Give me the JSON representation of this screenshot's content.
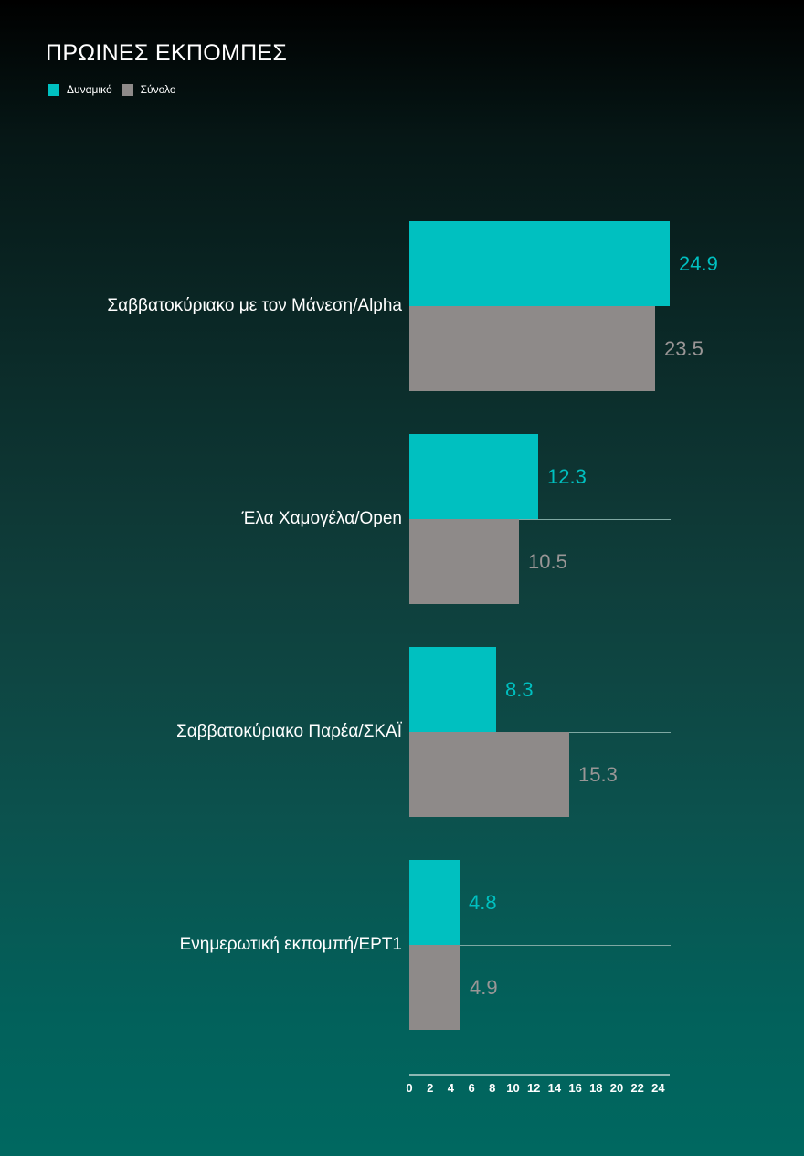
{
  "title": "ΠΡΩΙΝΕΣ ΕΚΠΟΜΠΕΣ",
  "legend": [
    {
      "label": "Δυναμικό",
      "color": "#00c0c0"
    },
    {
      "label": "Σύνολο",
      "color": "#8e8a89"
    }
  ],
  "colors": {
    "dynamic": "#00c0c0",
    "total": "#8e8a89"
  },
  "chart_data": {
    "type": "bar",
    "orientation": "horizontal",
    "title": "ΠΡΩΙΝΕΣ ΕΚΠΟΜΠΕΣ",
    "categories": [
      "Σαββατοκύριακο με τον Μάνεση/Alpha",
      "Έλα Χαμογέλα/Open",
      "Σαββατοκύριακο Παρέα/ΣΚΑΪ",
      "Ενημερωτική εκπομπή/ΕΡΤ1"
    ],
    "series": [
      {
        "name": "Δυναμικό",
        "values": [
          24.9,
          12.3,
          8.3,
          4.8
        ],
        "color": "#00c0c0"
      },
      {
        "name": "Σύνολο",
        "values": [
          23.5,
          10.5,
          15.3,
          4.9
        ],
        "color": "#8e8a89"
      }
    ],
    "value_labels": {
      "dynamic": [
        "24.9",
        "12.3",
        "8.3",
        "4.8"
      ],
      "total": [
        "23.5",
        "10.5",
        "15.3",
        "4.9"
      ]
    },
    "xlabel": "",
    "ylabel": "",
    "xlim": [
      0,
      24.9
    ],
    "xticks": [
      "0",
      "2",
      "4",
      "6",
      "8",
      "10",
      "12",
      "14",
      "16",
      "18",
      "20",
      "22",
      "24"
    ],
    "grid": false,
    "legend_position": "top-left"
  }
}
